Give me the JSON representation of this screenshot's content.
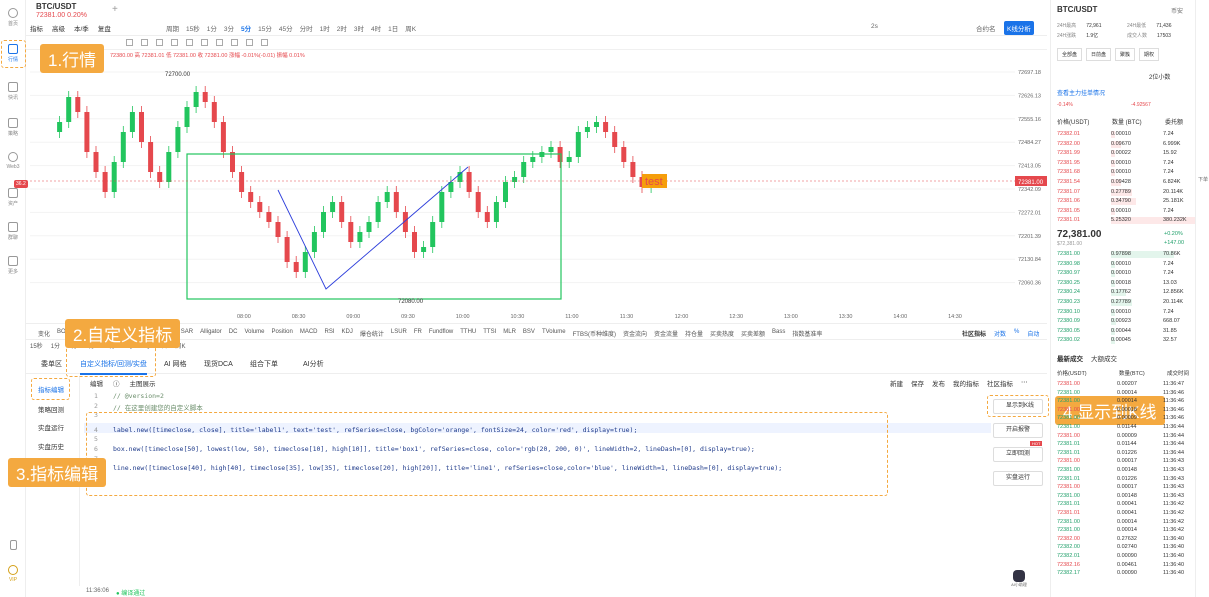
{
  "nav": {
    "items": [
      {
        "label": "首页"
      },
      {
        "label": "行情"
      },
      {
        "label": "快讯"
      },
      {
        "label": "策略"
      },
      {
        "label": "Web3"
      },
      {
        "label": "资产"
      },
      {
        "label": "群聊"
      },
      {
        "label": "更多"
      }
    ],
    "vip": "VIP",
    "badge": "36.2"
  },
  "top": {
    "symbol": "BTC/USDT",
    "price": "72381.00",
    "change": "0.20%",
    "plus": "+",
    "actions": [
      "指标",
      "高级",
      "本/季",
      "复盘"
    ],
    "periods": [
      "周期",
      "15秒",
      "1分",
      "3分",
      "5分",
      "15分",
      "45分",
      "分时",
      "1时",
      "2时",
      "3时",
      "4时",
      "1日",
      "周K"
    ],
    "active_period": "5分",
    "right_text": "2s",
    "right_btn": "K线分析",
    "sub_label": "合约名"
  },
  "ohlc": "72380.00 高 72381.01 低 72381.00 收 72381.00 涨幅 -0.01%(-0.01) 振幅 0.01%",
  "chart_data": {
    "type": "candlestick",
    "x_ticks": [
      "08:00",
      "08:30",
      "09:00",
      "09:30",
      "10:00",
      "10:30",
      "11:00",
      "11:30",
      "12:00",
      "12:30",
      "13:00",
      "13:30",
      "14:00",
      "14:30"
    ],
    "y_ticks": [
      "72697.18",
      "72626.13",
      "72555.16",
      "72484.27",
      "72413.05",
      "72342.09",
      "72272.01",
      "72201.39",
      "72130.84",
      "72060.36"
    ],
    "current_price": "72381.00",
    "high_label": "72700.00",
    "low_label": "72080.00",
    "text_label": "test",
    "box_label": "box1",
    "line_label": "line1"
  },
  "ind_bar": {
    "items": [
      "变化",
      "BOLL",
      "EMA",
      "SAR",
      "筹码分布",
      "Ichimoku",
      "SAR",
      "Alligator",
      "DC",
      "Volume",
      "Position",
      "MACD",
      "RSI",
      "KDJ",
      "爆仓统计",
      "LSUR",
      "FR",
      "Fundflow",
      "TTHU",
      "TTSI",
      "MLR",
      "BSV",
      "TVolume",
      "FTBS(币种维度)",
      "资金流向",
      "资金流量",
      "持仓量",
      "买卖热度",
      "买卖差额",
      "Bass",
      "指数基准率"
    ],
    "right": [
      "社区指标",
      "对数",
      "%",
      "自动"
    ],
    "periods": [
      "15秒",
      "1分",
      "3分",
      "5分",
      "15分",
      "1时",
      "4时",
      "1日",
      "周K"
    ]
  },
  "tabs": {
    "items": [
      "委单区",
      "自定义指标/回测/实盘",
      "AI 网格",
      "现货DCA",
      "组合下单",
      "AI分析"
    ],
    "active": 1
  },
  "sub": {
    "side": [
      "指标编辑",
      "策略回测",
      "实盘运行",
      "实盘历史"
    ],
    "toolbar": [
      "编辑",
      "ⓘ",
      "主图展示"
    ],
    "right": [
      "新建",
      "保存",
      "发布",
      "我的指标",
      "社区指标",
      "⋯"
    ]
  },
  "code": {
    "lines": [
      {
        "n": "1",
        "t": "// @version=2"
      },
      {
        "n": "2",
        "t": "// 在这里创建您的自定义脚本"
      },
      {
        "n": "3",
        "t": ""
      },
      {
        "n": "4",
        "t": "label.new([timeclose, close], title='label1', text='test', refSeries=close, bgColor='orange', fontSize=24, color='red', display=true);"
      },
      {
        "n": "5",
        "t": ""
      },
      {
        "n": "6",
        "t": "box.new([timeclose[50], lowest(low, 50), timeclose[10], high[10]], title='box1', refSeries=close, color='rgb(20, 200, 0)', lineWidth=2, lineDash=[0], display=true);"
      },
      {
        "n": "7",
        "t": ""
      },
      {
        "n": "8",
        "t": "line.new([timeclose[40], high[40], timeclose[35], low[35], timeclose[20], high[20]], title='line1', refSeries=close,color='blue', lineWidth=1, lineDash=[0], display=true);"
      }
    ]
  },
  "editor_buttons": [
    "显示到K线",
    "开启报警",
    "立即回测",
    "实盘运行"
  ],
  "hot": "HOT",
  "status": {
    "time": "11:36:06",
    "msg": "编译通过"
  },
  "annotations": [
    "1.行情",
    "2.自定义指标",
    "3.指标编辑",
    "4.显示到K线"
  ],
  "right": {
    "symbol": "BTC/USDT",
    "tag": "币安",
    "stats": [
      [
        "24H最高",
        "72,961"
      ],
      [
        "24H最低",
        "71,436"
      ],
      [
        "24H涨跌",
        "1.9亿"
      ],
      [
        "成交人数",
        "17503"
      ]
    ],
    "buttons": [
      "全部盘",
      "日前盘",
      "聚簇",
      "期权"
    ],
    "precision": "2位小数",
    "toggle": "查看主力挂单情况",
    "diff": [
      "-0.14%",
      "-4.92567"
    ],
    "headers": [
      "价格(USDT)",
      "数量 (BTC)",
      "委托额"
    ],
    "asks": [
      [
        "72382.01",
        "0.00010",
        "7.24"
      ],
      [
        "72382.00",
        "0.09670",
        "6.999K"
      ],
      [
        "72381.99",
        "0.00022",
        "15.92"
      ],
      [
        "72381.95",
        "0.00010",
        "7.24"
      ],
      [
        "72381.68",
        "0.00010",
        "7.24"
      ],
      [
        "72381.54",
        "0.09428",
        "6.824K"
      ],
      [
        "72381.07",
        "0.27789",
        "20.114K"
      ],
      [
        "72381.06",
        "0.34790",
        "25.181K"
      ],
      [
        "72381.05",
        "0.00010",
        "7.24"
      ],
      [
        "72381.01",
        "5.25320",
        "380.232K"
      ]
    ],
    "last": "72,381.00",
    "last_sub": "$72,381.00",
    "last_pct": "+0.20%",
    "last_chg": "+147.00",
    "bids": [
      [
        "72381.00",
        "0.97898",
        "70.86K"
      ],
      [
        "72380.98",
        "0.00010",
        "7.24"
      ],
      [
        "72380.97",
        "0.00010",
        "7.24"
      ],
      [
        "72380.25",
        "0.00018",
        "13.03"
      ],
      [
        "72380.24",
        "0.17762",
        "12.856K"
      ],
      [
        "72380.23",
        "0.27789",
        "20.114K"
      ],
      [
        "72380.10",
        "0.00010",
        "7.24"
      ],
      [
        "72380.09",
        "0.00923",
        "668.07"
      ],
      [
        "72380.05",
        "0.00044",
        "31.85"
      ],
      [
        "72380.02",
        "0.00045",
        "32.57"
      ]
    ],
    "trades_tabs": [
      "最新成交",
      "大额成交"
    ],
    "trade_headers": [
      "价格(USDT)",
      "数量(BTC)",
      "成交时间"
    ],
    "trades": [
      [
        "72381.00",
        "0.00207",
        "11:36:47"
      ],
      [
        "72381.00",
        "0.00014",
        "11:36:46"
      ],
      [
        "72381.00",
        "0.00014",
        "11:36:46"
      ],
      [
        "72381.00",
        "0.00018",
        "11:36:46"
      ],
      [
        "72381.00",
        "0.00009",
        "11:36:46"
      ],
      [
        "72381.00",
        "0.01144",
        "11:36:44"
      ],
      [
        "72381.00",
        "0.00009",
        "11:36:44"
      ],
      [
        "72381.01",
        "0.01144",
        "11:36:44"
      ],
      [
        "72381.01",
        "0.01226",
        "11:36:44"
      ],
      [
        "72381.00",
        "0.00017",
        "11:36:43"
      ],
      [
        "72381.00",
        "0.00148",
        "11:36:43"
      ],
      [
        "72381.01",
        "0.01226",
        "11:36:43"
      ],
      [
        "72381.00",
        "0.00017",
        "11:36:43"
      ],
      [
        "72381.00",
        "0.00148",
        "11:36:43"
      ],
      [
        "72381.01",
        "0.00041",
        "11:36:42"
      ],
      [
        "72381.01",
        "0.00041",
        "11:36:42"
      ],
      [
        "72381.00",
        "0.00014",
        "11:36:42"
      ],
      [
        "72381.00",
        "0.00014",
        "11:36:42"
      ],
      [
        "72382.00",
        "0.27632",
        "11:36:40"
      ],
      [
        "72382.00",
        "0.02740",
        "11:36:40"
      ],
      [
        "72382.01",
        "0.00090",
        "11:36:40"
      ],
      [
        "72382.16",
        "0.00461",
        "11:36:40"
      ],
      [
        "72382.17",
        "0.00090",
        "11:36:40"
      ]
    ],
    "ai_label": "AI小助理"
  },
  "far": {
    "label": "下单"
  }
}
